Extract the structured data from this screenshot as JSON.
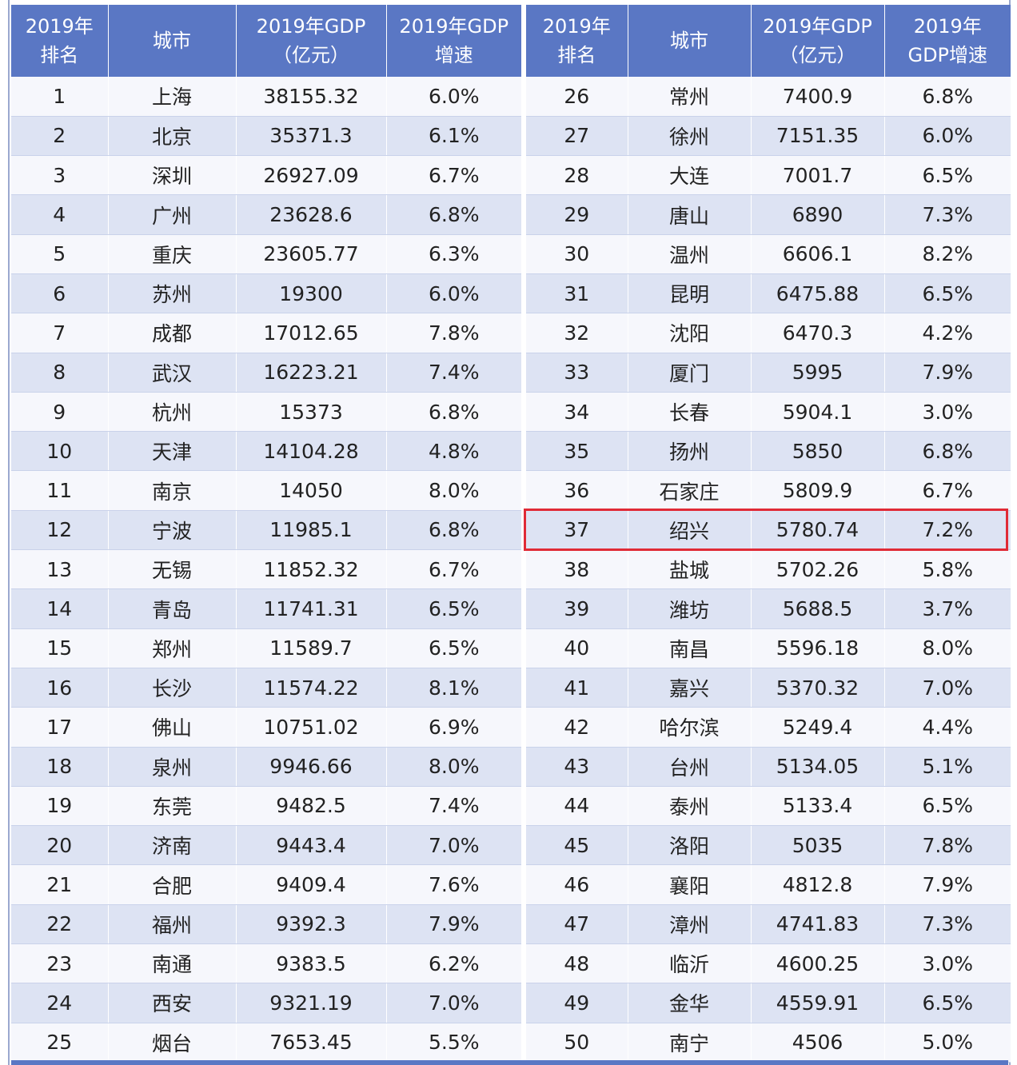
{
  "headers": {
    "left": [
      "2019年\n排名",
      "城市",
      "2019年GDP\n（亿元）",
      "2019年GDP\n增速"
    ],
    "right": [
      "2019年\n排名",
      "城市",
      "2019年GDP\n（亿元）",
      "2019年\nGDP增速"
    ]
  },
  "highlight_color": "#e02a36",
  "header_color": "#5a77c4",
  "rows_left": [
    [
      "1",
      "上海",
      "38155.32",
      "6.0%"
    ],
    [
      "2",
      "北京",
      "35371.3",
      "6.1%"
    ],
    [
      "3",
      "深圳",
      "26927.09",
      "6.7%"
    ],
    [
      "4",
      "广州",
      "23628.6",
      "6.8%"
    ],
    [
      "5",
      "重庆",
      "23605.77",
      "6.3%"
    ],
    [
      "6",
      "苏州",
      "19300",
      "6.0%"
    ],
    [
      "7",
      "成都",
      "17012.65",
      "7.8%"
    ],
    [
      "8",
      "武汉",
      "16223.21",
      "7.4%"
    ],
    [
      "9",
      "杭州",
      "15373",
      "6.8%"
    ],
    [
      "10",
      "天津",
      "14104.28",
      "4.8%"
    ],
    [
      "11",
      "南京",
      "14050",
      "8.0%"
    ],
    [
      "12",
      "宁波",
      "11985.1",
      "6.8%"
    ],
    [
      "13",
      "无锡",
      "11852.32",
      "6.7%"
    ],
    [
      "14",
      "青岛",
      "11741.31",
      "6.5%"
    ],
    [
      "15",
      "郑州",
      "11589.7",
      "6.5%"
    ],
    [
      "16",
      "长沙",
      "11574.22",
      "8.1%"
    ],
    [
      "17",
      "佛山",
      "10751.02",
      "6.9%"
    ],
    [
      "18",
      "泉州",
      "9946.66",
      "8.0%"
    ],
    [
      "19",
      "东莞",
      "9482.5",
      "7.4%"
    ],
    [
      "20",
      "济南",
      "9443.4",
      "7.0%"
    ],
    [
      "21",
      "合肥",
      "9409.4",
      "7.6%"
    ],
    [
      "22",
      "福州",
      "9392.3",
      "7.9%"
    ],
    [
      "23",
      "南通",
      "9383.5",
      "6.2%"
    ],
    [
      "24",
      "西安",
      "9321.19",
      "7.0%"
    ],
    [
      "25",
      "烟台",
      "7653.45",
      "5.5%"
    ]
  ],
  "rows_right": [
    [
      "26",
      "常州",
      "7400.9",
      "6.8%"
    ],
    [
      "27",
      "徐州",
      "7151.35",
      "6.0%"
    ],
    [
      "28",
      "大连",
      "7001.7",
      "6.5%"
    ],
    [
      "29",
      "唐山",
      "6890",
      "7.3%"
    ],
    [
      "30",
      "温州",
      "6606.1",
      "8.2%"
    ],
    [
      "31",
      "昆明",
      "6475.88",
      "6.5%"
    ],
    [
      "32",
      "沈阳",
      "6470.3",
      "4.2%"
    ],
    [
      "33",
      "厦门",
      "5995",
      "7.9%"
    ],
    [
      "34",
      "长春",
      "5904.1",
      "3.0%"
    ],
    [
      "35",
      "扬州",
      "5850",
      "6.8%"
    ],
    [
      "36",
      "石家庄",
      "5809.9",
      "6.7%"
    ],
    [
      "37",
      "绍兴",
      "5780.74",
      "7.2%"
    ],
    [
      "38",
      "盐城",
      "5702.26",
      "5.8%"
    ],
    [
      "39",
      "潍坊",
      "5688.5",
      "3.7%"
    ],
    [
      "40",
      "南昌",
      "5596.18",
      "8.0%"
    ],
    [
      "41",
      "嘉兴",
      "5370.32",
      "7.0%"
    ],
    [
      "42",
      "哈尔滨",
      "5249.4",
      "4.4%"
    ],
    [
      "43",
      "台州",
      "5134.05",
      "5.1%"
    ],
    [
      "44",
      "泰州",
      "5133.4",
      "6.5%"
    ],
    [
      "45",
      "洛阳",
      "5035",
      "7.8%"
    ],
    [
      "46",
      "襄阳",
      "4812.8",
      "7.9%"
    ],
    [
      "47",
      "漳州",
      "4741.83",
      "7.3%"
    ],
    [
      "48",
      "临沂",
      "4600.25",
      "3.0%"
    ],
    [
      "49",
      "金华",
      "4559.91",
      "6.5%"
    ],
    [
      "50",
      "南宁",
      "4506",
      "5.0%"
    ]
  ]
}
